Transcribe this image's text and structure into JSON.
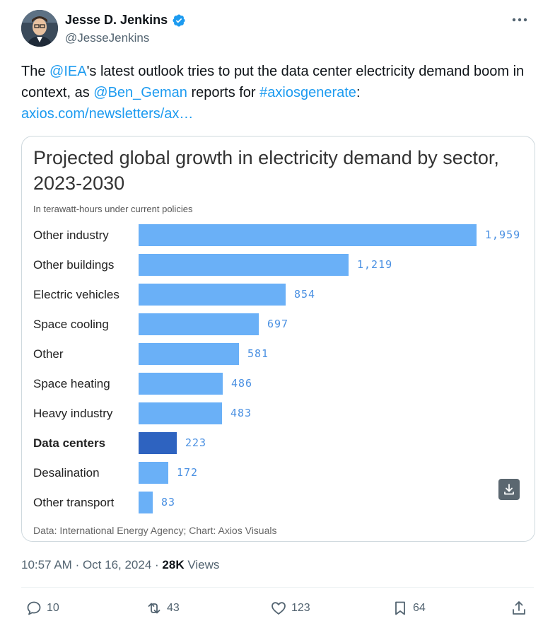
{
  "author": {
    "name": "Jesse D. Jenkins",
    "handle": "@JesseJenkins",
    "verified": true
  },
  "more_icon": "more-horizontal-icon",
  "tweet": {
    "text_1": "The ",
    "mention_1": "@IEA",
    "text_2": "'s latest outlook tries to put the data center electricity demand boom in context, as ",
    "mention_2": "@Ben_Geman",
    "text_3": " reports for ",
    "hashtag": "#axiosgenerate",
    "text_4": ":",
    "link": "axios.com/newsletters/ax…"
  },
  "chart_data": {
    "type": "bar",
    "orientation": "horizontal",
    "title": "Projected global growth in electricity demand by sector, 2023-2030",
    "subtitle": "In terawatt-hours under current policies",
    "categories": [
      "Other industry",
      "Other buildings",
      "Electric vehicles",
      "Space cooling",
      "Other",
      "Space heating",
      "Heavy industry",
      "Data centers",
      "Desalination",
      "Other transport"
    ],
    "values": [
      1959,
      1219,
      854,
      697,
      581,
      486,
      483,
      223,
      172,
      83
    ],
    "value_labels": [
      "1,959",
      "1,219",
      "854",
      "697",
      "581",
      "486",
      "483",
      "223",
      "172",
      "83"
    ],
    "highlight": "Data centers",
    "colors": {
      "bar": "#6ab0f7",
      "highlight": "#2e63c0",
      "value_text": "#4a90e2"
    },
    "source": "Data: International Energy Agency; Chart: Axios Visuals"
  },
  "meta": {
    "time": "10:57 AM",
    "date": "Oct 16, 2024",
    "views_count": "28K",
    "views_label": "Views"
  },
  "actions": {
    "replies": "10",
    "reposts": "43",
    "likes": "123",
    "bookmarks": "64"
  },
  "colors": {
    "link": "#1d9bf0",
    "secondary_text": "#536471",
    "verified": "#1d9bf0"
  }
}
